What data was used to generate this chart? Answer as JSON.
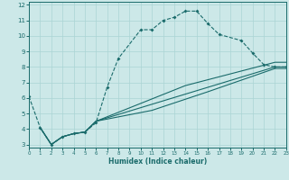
{
  "xlabel": "Humidex (Indice chaleur)",
  "bg_color": "#cce8e8",
  "grid_color": "#aad4d4",
  "line_color": "#1a6b6b",
  "xlim": [
    0,
    23
  ],
  "ylim": [
    2.8,
    12.2
  ],
  "xticks": [
    0,
    1,
    2,
    3,
    4,
    5,
    6,
    7,
    8,
    9,
    10,
    11,
    12,
    13,
    14,
    15,
    16,
    17,
    18,
    19,
    20,
    21,
    22,
    23
  ],
  "yticks": [
    3,
    4,
    5,
    6,
    7,
    8,
    9,
    10,
    11,
    12
  ],
  "curve1_x": [
    0,
    1,
    2,
    3,
    4,
    5,
    6,
    7,
    8,
    10,
    11,
    12,
    13,
    14,
    15,
    16,
    17,
    19,
    20,
    21,
    22,
    23
  ],
  "curve1_y": [
    6.1,
    4.1,
    3.0,
    3.5,
    3.7,
    3.8,
    4.4,
    6.7,
    8.55,
    10.4,
    10.4,
    11.0,
    11.2,
    11.6,
    11.6,
    10.8,
    10.1,
    9.7,
    8.9,
    8.15,
    8.0,
    8.0
  ],
  "fan1_x": [
    1,
    2,
    3,
    4,
    5,
    6,
    22,
    23
  ],
  "fan1_y": [
    4.1,
    3.0,
    3.5,
    3.7,
    3.8,
    4.5,
    8.0,
    8.0
  ],
  "fan2_x": [
    1,
    2,
    3,
    4,
    5,
    6,
    14,
    22,
    23
  ],
  "fan2_y": [
    4.1,
    3.0,
    3.5,
    3.7,
    3.8,
    4.5,
    6.8,
    8.3,
    8.3
  ],
  "fan3_x": [
    1,
    2,
    3,
    4,
    5,
    6,
    11,
    16,
    22,
    23
  ],
  "fan3_y": [
    4.1,
    3.0,
    3.5,
    3.7,
    3.8,
    4.5,
    5.2,
    6.4,
    7.9,
    7.9
  ]
}
